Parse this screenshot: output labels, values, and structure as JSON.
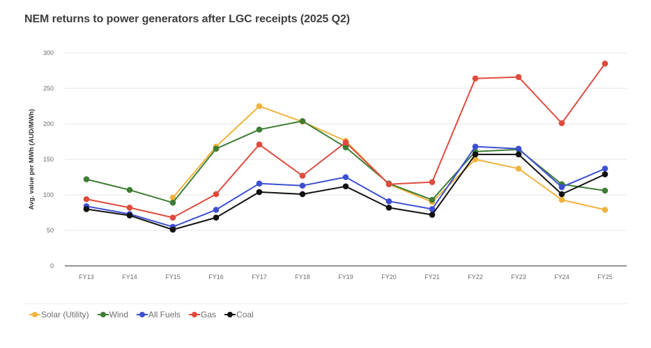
{
  "chart_data": {
    "type": "line",
    "title": "NEM returns to power generators after LGC receipts (2025 Q2)",
    "xlabel": "",
    "ylabel": "Avg. value per MWh (AUD/MWh)",
    "ylim": [
      0,
      300
    ],
    "yticks": [
      0,
      50,
      100,
      150,
      200,
      250,
      300
    ],
    "grid": true,
    "legend_position": "bottom-left",
    "categories": [
      "FY13",
      "FY14",
      "FY15",
      "FY16",
      "FY17",
      "FY18",
      "FY19",
      "FY20",
      "FY21",
      "FY22",
      "FY23",
      "FY24",
      "FY25"
    ],
    "series": [
      {
        "name": "Solar (Utility)",
        "color": "#f0b33c",
        "values": [
          null,
          null,
          96,
          168,
          225,
          203,
          176,
          115,
          90,
          150,
          137,
          93,
          79
        ]
      },
      {
        "name": "Wind",
        "color": "#3f7d35",
        "values": [
          122,
          107,
          89,
          165,
          192,
          204,
          167,
          116,
          93,
          161,
          164,
          115,
          106
        ]
      },
      {
        "name": "All Fuels",
        "color": "#3d4fd1",
        "values": [
          84,
          73,
          55,
          79,
          116,
          113,
          125,
          91,
          80,
          168,
          165,
          111,
          137
        ]
      },
      {
        "name": "Gas",
        "color": "#e04a3c",
        "values": [
          94,
          82,
          68,
          101,
          171,
          127,
          174,
          115,
          118,
          264,
          266,
          201,
          285
        ]
      },
      {
        "name": "Coal",
        "color": "#111111",
        "values": [
          80,
          71,
          51,
          68,
          104,
          101,
          112,
          82,
          72,
          157,
          157,
          101,
          129
        ]
      }
    ]
  }
}
